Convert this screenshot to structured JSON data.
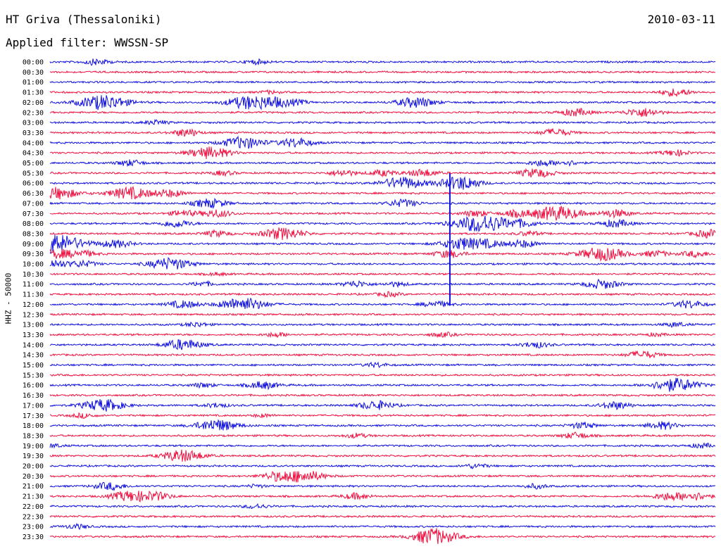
{
  "header": {
    "station": "HT Griva (Thessaloniki)",
    "date": "2010-03-11",
    "filter": "Applied filter: WWSSN-SP"
  },
  "colors": {
    "even_trace": "#1010e0",
    "odd_trace": "#f01040",
    "axis": "#000000"
  },
  "chart_data": {
    "type": "line",
    "title": "HT Griva (Thessaloniki)",
    "ylabel": "HHZ - 50000",
    "xlabel": "",
    "grid": false,
    "rows": [
      {
        "time": "00:00",
        "events": [
          [
            0.07,
            4
          ],
          [
            0.31,
            3
          ]
        ]
      },
      {
        "time": "00:30",
        "events": []
      },
      {
        "time": "01:00",
        "events": []
      },
      {
        "time": "01:30",
        "events": [
          [
            0.33,
            2
          ],
          [
            0.94,
            5
          ]
        ]
      },
      {
        "time": "02:00",
        "events": [
          [
            0.08,
            10
          ],
          [
            0.3,
            9
          ],
          [
            0.34,
            5
          ],
          [
            0.37,
            3
          ],
          [
            0.55,
            7
          ]
        ]
      },
      {
        "time": "02:30",
        "events": [
          [
            0.79,
            5
          ],
          [
            0.89,
            6
          ]
        ]
      },
      {
        "time": "03:00",
        "events": [
          [
            0.16,
            3
          ]
        ]
      },
      {
        "time": "03:30",
        "events": [
          [
            0.2,
            3
          ],
          [
            0.21,
            3
          ],
          [
            0.76,
            5
          ]
        ]
      },
      {
        "time": "04:00",
        "events": [
          [
            0.29,
            8
          ],
          [
            0.37,
            6
          ]
        ]
      },
      {
        "time": "04:30",
        "events": [
          [
            0.24,
            8
          ],
          [
            0.94,
            4
          ]
        ]
      },
      {
        "time": "05:00",
        "events": [
          [
            0.12,
            4
          ],
          [
            0.74,
            4
          ],
          [
            0.78,
            3
          ]
        ]
      },
      {
        "time": "05:30",
        "events": [
          [
            0.26,
            3
          ],
          [
            0.44,
            4
          ],
          [
            0.5,
            4
          ],
          [
            0.56,
            5
          ],
          [
            0.73,
            6
          ]
        ]
      },
      {
        "time": "06:00",
        "events": [
          [
            0.53,
            8
          ],
          [
            0.61,
            7
          ],
          [
            0.63,
            4
          ]
        ]
      },
      {
        "time": "06:30",
        "events": [
          [
            0.01,
            8
          ],
          [
            0.12,
            8
          ],
          [
            0.18,
            5
          ]
        ]
      },
      {
        "time": "07:00",
        "events": [
          [
            0.24,
            6
          ],
          [
            0.53,
            5
          ]
        ]
      },
      {
        "time": "07:30",
        "events": [
          [
            0.2,
            4
          ],
          [
            0.25,
            5
          ],
          [
            0.64,
            4
          ],
          [
            0.7,
            4
          ],
          [
            0.76,
            10
          ],
          [
            0.85,
            5
          ]
        ]
      },
      {
        "time": "08:00",
        "events": [
          [
            0.19,
            5
          ],
          [
            0.65,
            12
          ],
          [
            0.71,
            4
          ],
          [
            0.85,
            5
          ]
        ]
      },
      {
        "time": "08:30",
        "events": [
          [
            0.25,
            4
          ],
          [
            0.35,
            8
          ],
          [
            0.72,
            3
          ],
          [
            0.99,
            5
          ]
        ]
      },
      {
        "time": "09:00",
        "events": [
          [
            0.0,
            14
          ],
          [
            0.1,
            5
          ],
          [
            0.62,
            8
          ],
          [
            0.66,
            4
          ],
          [
            0.71,
            5
          ]
        ]
      },
      {
        "time": "09:30",
        "events": [
          [
            0.01,
            6
          ],
          [
            0.05,
            4
          ],
          [
            0.6,
            5
          ],
          [
            0.83,
            9
          ],
          [
            0.91,
            4
          ],
          [
            0.97,
            4
          ]
        ]
      },
      {
        "time": "10:00",
        "events": [
          [
            0.0,
            6
          ],
          [
            0.05,
            4
          ],
          [
            0.18,
            8
          ]
        ]
      },
      {
        "time": "10:30",
        "events": [
          [
            0.25,
            2
          ]
        ]
      },
      {
        "time": "11:00",
        "events": [
          [
            0.23,
            3
          ],
          [
            0.46,
            4
          ],
          [
            0.52,
            3
          ],
          [
            0.83,
            6
          ]
        ]
      },
      {
        "time": "11:30",
        "events": [
          [
            0.51,
            3
          ]
        ]
      },
      {
        "time": "12:00",
        "events": [
          [
            0.2,
            5
          ],
          [
            0.29,
            9
          ],
          [
            0.58,
            4
          ],
          [
            0.96,
            5
          ]
        ]
      },
      {
        "time": "12:30",
        "events": []
      },
      {
        "time": "13:00",
        "events": [
          [
            0.22,
            3
          ],
          [
            0.94,
            3
          ]
        ]
      },
      {
        "time": "13:30",
        "events": [
          [
            0.34,
            3
          ],
          [
            0.59,
            3
          ],
          [
            0.91,
            2
          ]
        ]
      },
      {
        "time": "14:00",
        "events": [
          [
            0.2,
            7
          ],
          [
            0.73,
            4
          ]
        ]
      },
      {
        "time": "14:30",
        "events": [
          [
            0.89,
            5
          ]
        ]
      },
      {
        "time": "15:00",
        "events": [
          [
            0.49,
            3
          ]
        ]
      },
      {
        "time": "15:30",
        "events": []
      },
      {
        "time": "16:00",
        "events": [
          [
            0.23,
            3
          ],
          [
            0.32,
            5
          ],
          [
            0.94,
            9
          ]
        ]
      },
      {
        "time": "16:30",
        "events": []
      },
      {
        "time": "17:00",
        "events": [
          [
            0.08,
            8
          ],
          [
            0.25,
            3
          ],
          [
            0.49,
            6
          ],
          [
            0.85,
            5
          ]
        ]
      },
      {
        "time": "17:30",
        "events": [
          [
            0.05,
            3
          ],
          [
            0.32,
            2
          ]
        ]
      },
      {
        "time": "18:00",
        "events": [
          [
            0.25,
            8
          ],
          [
            0.8,
            4
          ],
          [
            0.92,
            5
          ]
        ]
      },
      {
        "time": "18:30",
        "events": [
          [
            0.46,
            3
          ],
          [
            0.79,
            4
          ]
        ]
      },
      {
        "time": "19:00",
        "events": [
          [
            0.0,
            3
          ],
          [
            0.98,
            3
          ]
        ]
      },
      {
        "time": "19:30",
        "events": [
          [
            0.2,
            8
          ]
        ]
      },
      {
        "time": "20:00",
        "events": [
          [
            0.64,
            3
          ]
        ]
      },
      {
        "time": "20:30",
        "events": [
          [
            0.34,
            5
          ],
          [
            0.38,
            8
          ]
        ]
      },
      {
        "time": "21:00",
        "events": [
          [
            0.09,
            5
          ],
          [
            0.31,
            2
          ],
          [
            0.73,
            3
          ]
        ]
      },
      {
        "time": "21:30",
        "events": [
          [
            0.12,
            7
          ],
          [
            0.16,
            5
          ],
          [
            0.46,
            4
          ],
          [
            0.93,
            5
          ],
          [
            0.97,
            5
          ]
        ]
      },
      {
        "time": "22:00",
        "events": [
          [
            0.31,
            3
          ]
        ]
      },
      {
        "time": "22:30",
        "events": []
      },
      {
        "time": "23:00",
        "events": [
          [
            0.04,
            3
          ]
        ]
      },
      {
        "time": "23:30",
        "events": [
          [
            0.57,
            3
          ],
          [
            0.58,
            9
          ]
        ]
      }
    ],
    "main_shock": {
      "start_time": "06:00",
      "end_time": "12:00",
      "position": 0.601
    }
  }
}
